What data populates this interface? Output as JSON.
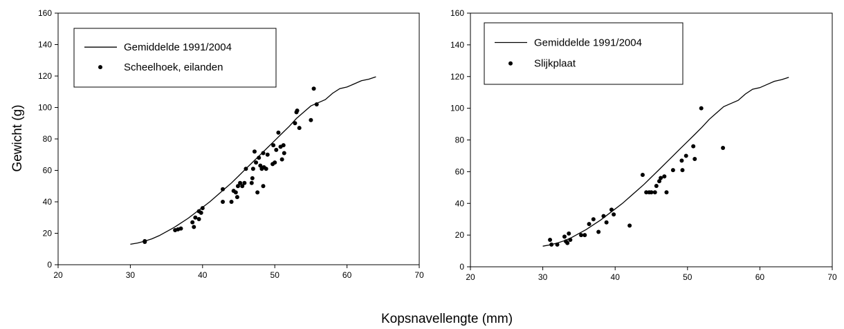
{
  "shared": {
    "xlabel": "Kopsnavellengte (mm)",
    "ylabel": "Gewicht (g)"
  },
  "chart_data": [
    {
      "type": "scatter",
      "xlim": [
        20,
        70
      ],
      "ylim": [
        0,
        160
      ],
      "xticks": [
        20,
        30,
        40,
        50,
        60,
        70
      ],
      "yticks": [
        0,
        20,
        40,
        60,
        80,
        100,
        120,
        140,
        160
      ],
      "grid": false,
      "legend_position": "top-left",
      "series": [
        {
          "name": "Gemiddelde 1991/2004",
          "kind": "line",
          "x": [
            30,
            31,
            32,
            33,
            34,
            35,
            36,
            37,
            38,
            39,
            40,
            41,
            42,
            43,
            44,
            45,
            46,
            47,
            48,
            49,
            50,
            51,
            52,
            53,
            54,
            55,
            56,
            57,
            58,
            59,
            60,
            61,
            62,
            63,
            64
          ],
          "y": [
            13,
            13.8,
            15,
            16.5,
            18.5,
            21,
            23.5,
            26.5,
            29.5,
            33,
            36.5,
            40,
            44,
            48,
            52,
            56.5,
            61,
            65.5,
            70,
            74.5,
            79,
            83.5,
            88,
            93,
            97,
            101,
            103,
            105,
            109,
            112,
            113,
            115,
            117,
            118,
            119.5
          ]
        },
        {
          "name": "Scheelhoek, eilanden",
          "kind": "scatter",
          "points": [
            [
              32,
              14.5
            ],
            [
              32,
              15
            ],
            [
              36.2,
              22
            ],
            [
              36.6,
              22.5
            ],
            [
              37,
              23
            ],
            [
              38.6,
              27
            ],
            [
              38.8,
              24
            ],
            [
              39,
              30
            ],
            [
              39.5,
              29
            ],
            [
              39.5,
              34
            ],
            [
              39.8,
              33
            ],
            [
              40,
              36
            ],
            [
              42.8,
              40
            ],
            [
              42.8,
              48
            ],
            [
              44,
              40
            ],
            [
              44.3,
              47
            ],
            [
              44.6,
              46
            ],
            [
              44.8,
              43
            ],
            [
              44.9,
              50
            ],
            [
              45.2,
              52
            ],
            [
              45.5,
              50
            ],
            [
              45.8,
              52
            ],
            [
              46,
              61
            ],
            [
              46.8,
              52
            ],
            [
              46.9,
              55
            ],
            [
              47,
              61
            ],
            [
              47.2,
              72
            ],
            [
              47.4,
              65
            ],
            [
              47.6,
              46
            ],
            [
              47.8,
              68
            ],
            [
              48,
              63
            ],
            [
              48.2,
              61
            ],
            [
              48.4,
              50
            ],
            [
              48.4,
              71
            ],
            [
              48.5,
              62
            ],
            [
              48.8,
              61
            ],
            [
              49,
              70
            ],
            [
              49.7,
              64
            ],
            [
              49.8,
              76
            ],
            [
              50,
              65
            ],
            [
              50.2,
              73
            ],
            [
              50.5,
              84
            ],
            [
              50.8,
              75
            ],
            [
              51,
              67
            ],
            [
              51.2,
              76
            ],
            [
              51.3,
              71
            ],
            [
              52.8,
              90
            ],
            [
              53,
              97
            ],
            [
              53.1,
              98
            ],
            [
              53.4,
              87
            ],
            [
              55,
              92
            ],
            [
              55.4,
              112
            ],
            [
              55.8,
              102
            ]
          ]
        }
      ]
    },
    {
      "type": "scatter",
      "xlim": [
        20,
        70
      ],
      "ylim": [
        0,
        160
      ],
      "xticks": [
        20,
        30,
        40,
        50,
        60,
        70
      ],
      "yticks": [
        0,
        20,
        40,
        60,
        80,
        100,
        120,
        140,
        160
      ],
      "grid": false,
      "legend_position": "top-left",
      "series": [
        {
          "name": "Gemiddelde 1991/2004",
          "kind": "line",
          "x": [
            30,
            31,
            32,
            33,
            34,
            35,
            36,
            37,
            38,
            39,
            40,
            41,
            42,
            43,
            44,
            45,
            46,
            47,
            48,
            49,
            50,
            51,
            52,
            53,
            54,
            55,
            56,
            57,
            58,
            59,
            60,
            61,
            62,
            63,
            64
          ],
          "y": [
            13,
            13.8,
            15,
            16.5,
            18.5,
            21,
            23.5,
            26.5,
            29.5,
            33,
            36.5,
            40,
            44,
            48,
            52,
            56.5,
            61,
            65.5,
            70,
            74.5,
            79,
            83.5,
            88,
            93,
            97,
            101,
            103,
            105,
            109,
            112,
            113,
            115,
            117,
            118,
            119.5
          ]
        },
        {
          "name": "Slijkplaat",
          "kind": "scatter",
          "points": [
            [
              31,
              17
            ],
            [
              31.2,
              14
            ],
            [
              32,
              14
            ],
            [
              33,
              19
            ],
            [
              33.2,
              16
            ],
            [
              33.4,
              15
            ],
            [
              33.6,
              21
            ],
            [
              33.8,
              17
            ],
            [
              35.3,
              20
            ],
            [
              35.8,
              20
            ],
            [
              36.4,
              27
            ],
            [
              37,
              30
            ],
            [
              37.7,
              22
            ],
            [
              38.4,
              32
            ],
            [
              38.8,
              28
            ],
            [
              39.5,
              36
            ],
            [
              39.8,
              33
            ],
            [
              42,
              26
            ],
            [
              43.8,
              58
            ],
            [
              44.3,
              47
            ],
            [
              44.7,
              47
            ],
            [
              45,
              47
            ],
            [
              45.5,
              47
            ],
            [
              45.7,
              51
            ],
            [
              46.1,
              54
            ],
            [
              46.3,
              56
            ],
            [
              46.8,
              57
            ],
            [
              47.1,
              47
            ],
            [
              48,
              61
            ],
            [
              49.2,
              67
            ],
            [
              49.3,
              61
            ],
            [
              49.8,
              70
            ],
            [
              50.8,
              76
            ],
            [
              51,
              68
            ],
            [
              51.9,
              100
            ],
            [
              54.9,
              75
            ]
          ]
        }
      ]
    }
  ]
}
